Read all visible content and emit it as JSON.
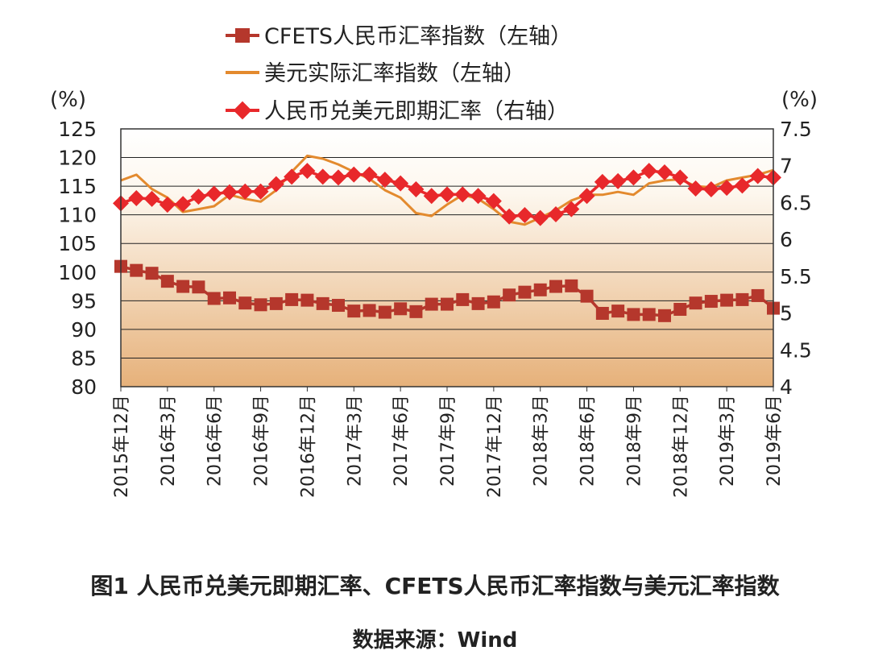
{
  "caption": "图1 人民币兑美元即期汇率、CFETS人民币汇率指数与美元汇率指数",
  "source": "数据来源：Wind",
  "chart_data": {
    "type": "line",
    "title": "",
    "left_axis": {
      "unit": "(%)",
      "ylim": [
        80,
        125
      ],
      "ticks": [
        "125",
        "120",
        "115",
        "110",
        "105",
        "100",
        "95",
        "90",
        "85",
        "80"
      ]
    },
    "right_axis": {
      "unit": "(%)",
      "ylim": [
        4,
        7.5
      ],
      "ticks": [
        "7.5",
        "7",
        "6.5",
        "6",
        "5.5",
        "5",
        "4.5",
        "4"
      ]
    },
    "x_tick_labels": [
      "2015年12月",
      "2016年3月",
      "2016年6月",
      "2016年9月",
      "2016年12月",
      "2017年3月",
      "2017年6月",
      "2017年9月",
      "2017年12月",
      "2018年3月",
      "2018年6月",
      "2018年9月",
      "2018年12月",
      "2019年3月",
      "2019年6月"
    ],
    "x_months": [
      "2015-12",
      "2016-01",
      "2016-02",
      "2016-03",
      "2016-04",
      "2016-05",
      "2016-06",
      "2016-07",
      "2016-08",
      "2016-09",
      "2016-10",
      "2016-11",
      "2016-12",
      "2017-01",
      "2017-02",
      "2017-03",
      "2017-04",
      "2017-05",
      "2017-06",
      "2017-07",
      "2017-08",
      "2017-09",
      "2017-10",
      "2017-11",
      "2017-12",
      "2018-01",
      "2018-02",
      "2018-03",
      "2018-04",
      "2018-05",
      "2018-06",
      "2018-07",
      "2018-08",
      "2018-09",
      "2018-10",
      "2018-11",
      "2018-12",
      "2019-01",
      "2019-02",
      "2019-03",
      "2019-04",
      "2019-05",
      "2019-06"
    ],
    "grid": true,
    "background": "gradient white to tan",
    "legend_position": "top",
    "series": [
      {
        "name": "CFETS人民币汇率指数（左轴）",
        "axis": "left",
        "color": "#b5372c",
        "marker": "square",
        "values": [
          101,
          100.3,
          99.8,
          98.4,
          97.5,
          97.4,
          95.4,
          95.5,
          94.6,
          94.3,
          94.5,
          95.2,
          95.1,
          94.5,
          94.2,
          93.2,
          93.3,
          93.0,
          93.6,
          93.1,
          94.4,
          94.4,
          95.2,
          94.5,
          94.8,
          96.0,
          96.5,
          96.9,
          97.5,
          97.6,
          95.8,
          92.8,
          93.2,
          92.6,
          92.6,
          92.4,
          93.5,
          94.6,
          94.9,
          95.1,
          95.2,
          95.9,
          93.7
        ]
      },
      {
        "name": "美元实际汇率指数（左轴）",
        "axis": "left",
        "color": "#e38a2e",
        "marker": "none",
        "values": [
          116,
          117,
          114.5,
          113,
          110.5,
          111,
          111.5,
          113.5,
          112.8,
          112.3,
          114.3,
          117.5,
          120.3,
          119.8,
          118.8,
          117.5,
          116.3,
          114.3,
          113,
          110.3,
          109.8,
          111.8,
          113.5,
          112.8,
          111,
          108.8,
          108.3,
          109.5,
          110.8,
          112.5,
          113.5,
          113.5,
          114,
          113.5,
          115.5,
          116,
          116.2,
          115,
          114.8,
          116,
          116.5,
          117,
          117.8
        ]
      },
      {
        "name": "人民币兑美元即期汇率（右轴）",
        "axis": "right",
        "color": "#e8282b",
        "marker": "diamond",
        "values": [
          6.49,
          6.56,
          6.55,
          6.47,
          6.48,
          6.58,
          6.62,
          6.64,
          6.65,
          6.65,
          6.75,
          6.85,
          6.93,
          6.85,
          6.84,
          6.88,
          6.88,
          6.81,
          6.76,
          6.68,
          6.59,
          6.61,
          6.61,
          6.59,
          6.52,
          6.31,
          6.33,
          6.29,
          6.34,
          6.41,
          6.59,
          6.78,
          6.79,
          6.84,
          6.93,
          6.91,
          6.84,
          6.69,
          6.68,
          6.7,
          6.73,
          6.86,
          6.84
        ]
      }
    ]
  }
}
